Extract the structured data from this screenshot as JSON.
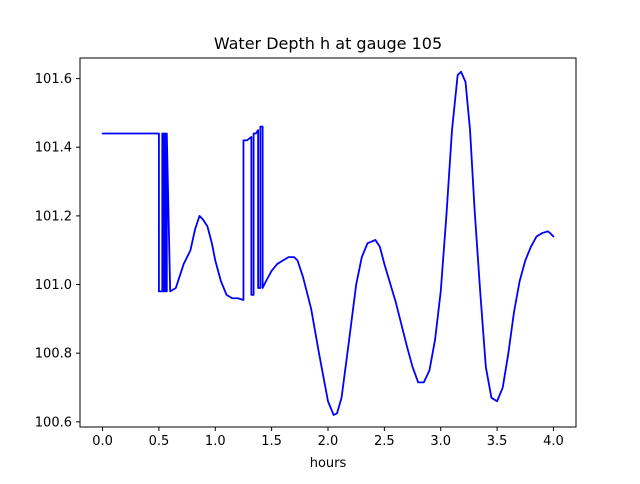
{
  "chart_data": {
    "type": "line",
    "title": "Water Depth h at gauge 105",
    "xlabel": "hours",
    "ylabel": "",
    "xlim": [
      -0.2,
      4.2
    ],
    "ylim": [
      100.585,
      101.66
    ],
    "grid": false,
    "xticks": [
      0.0,
      0.5,
      1.0,
      1.5,
      2.0,
      2.5,
      3.0,
      3.5,
      4.0
    ],
    "xtick_labels": [
      "0.0",
      "0.5",
      "1.0",
      "1.5",
      "2.0",
      "2.5",
      "3.0",
      "3.5",
      "4.0"
    ],
    "yticks": [
      100.6,
      100.8,
      101.0,
      101.2,
      101.4,
      101.6
    ],
    "ytick_labels": [
      "100.6",
      "100.8",
      "101.0",
      "101.2",
      "101.4",
      "101.6"
    ],
    "series": [
      {
        "name": "",
        "color": "#0000ff",
        "x": [
          0.0,
          0.45,
          0.49,
          0.5,
          0.5,
          0.53,
          0.53,
          0.54,
          0.54,
          0.55,
          0.55,
          0.56,
          0.56,
          0.57,
          0.57,
          0.6,
          0.65,
          0.68,
          0.72,
          0.78,
          0.82,
          0.86,
          0.89,
          0.93,
          0.97,
          1.0,
          1.05,
          1.1,
          1.15,
          1.2,
          1.25,
          1.25,
          1.28,
          1.3,
          1.32,
          1.32,
          1.34,
          1.34,
          1.36,
          1.38,
          1.38,
          1.4,
          1.4,
          1.42,
          1.42,
          1.45,
          1.5,
          1.55,
          1.6,
          1.65,
          1.7,
          1.73,
          1.78,
          1.85,
          1.92,
          2.0,
          2.05,
          2.08,
          2.12,
          2.18,
          2.25,
          2.3,
          2.35,
          2.42,
          2.46,
          2.5,
          2.6,
          2.7,
          2.75,
          2.8,
          2.85,
          2.9,
          2.95,
          3.0,
          3.05,
          3.1,
          3.15,
          3.18,
          3.22,
          3.26,
          3.3,
          3.35,
          3.4,
          3.45,
          3.5,
          3.55,
          3.6,
          3.65,
          3.7,
          3.75,
          3.8,
          3.85,
          3.9,
          3.95,
          3.97,
          4.0
        ],
        "y": [
          101.44,
          101.44,
          101.44,
          101.44,
          100.98,
          100.98,
          101.44,
          101.44,
          100.98,
          100.98,
          101.44,
          101.44,
          100.98,
          100.98,
          101.44,
          100.98,
          100.99,
          101.02,
          101.06,
          101.1,
          101.16,
          101.2,
          101.19,
          101.17,
          101.12,
          101.07,
          101.01,
          100.97,
          100.96,
          100.96,
          100.955,
          101.42,
          101.42,
          101.425,
          101.43,
          100.97,
          100.97,
          101.44,
          101.44,
          101.45,
          100.99,
          100.99,
          101.46,
          101.46,
          100.99,
          101.01,
          101.04,
          101.06,
          101.07,
          101.08,
          101.08,
          101.07,
          101.02,
          100.93,
          100.8,
          100.66,
          100.62,
          100.625,
          100.67,
          100.82,
          101.0,
          101.08,
          101.12,
          101.13,
          101.11,
          101.06,
          100.95,
          100.82,
          100.76,
          100.715,
          100.715,
          100.75,
          100.84,
          100.98,
          101.2,
          101.45,
          101.61,
          101.62,
          101.59,
          101.45,
          101.22,
          100.98,
          100.76,
          100.67,
          100.66,
          100.7,
          100.8,
          100.92,
          101.01,
          101.07,
          101.11,
          101.14,
          101.15,
          101.155,
          101.15,
          101.14
        ]
      }
    ]
  }
}
